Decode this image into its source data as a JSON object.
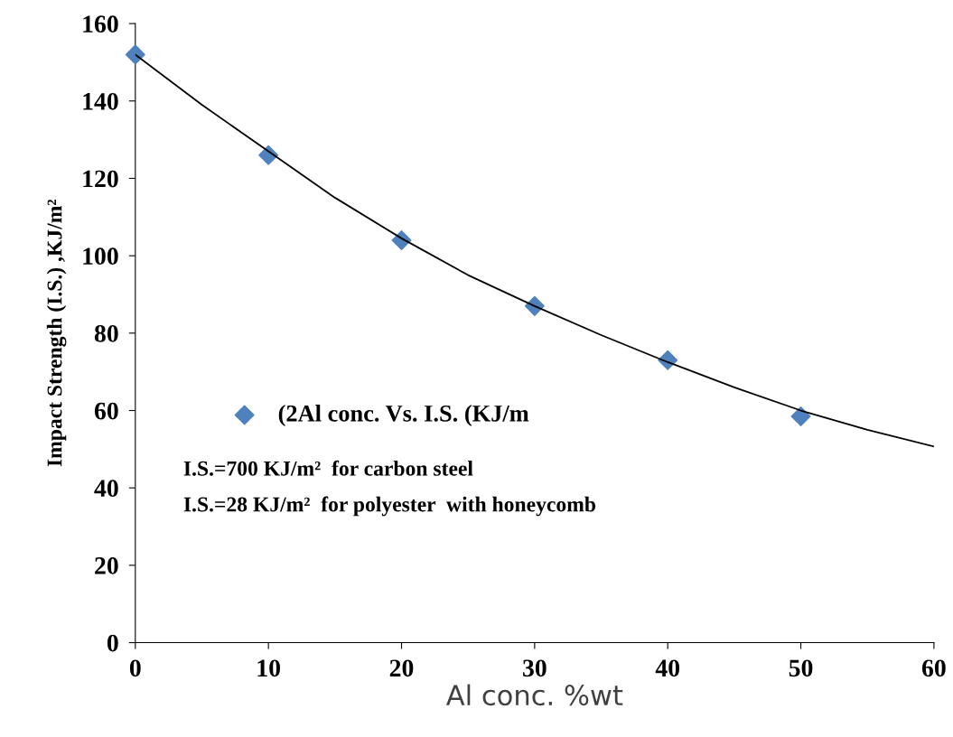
{
  "chart_data": {
    "type": "scatter",
    "xlabel": "Al conc. %wt",
    "ylabel": "Impact Strength (I.S.) ,KJ/m²",
    "x": [
      0,
      10,
      20,
      30,
      40,
      50
    ],
    "series": [
      {
        "name": "(2Al conc. Vs. I.S. (KJ/m",
        "color": "#4f81bd",
        "values": [
          152,
          126,
          104,
          87,
          73,
          58.5
        ],
        "marker": "diamond"
      },
      {
        "type": "line",
        "color": "#000000",
        "x": [
          0,
          5,
          10,
          15,
          20,
          25,
          30,
          35,
          40,
          45,
          50,
          55,
          60
        ],
        "values": [
          152,
          139,
          127,
          115,
          104.5,
          95,
          87,
          79.5,
          72.5,
          66,
          60,
          55,
          50.7
        ],
        "marker": "none",
        "line_style": "solid"
      }
    ],
    "annotations": [
      "I.S.=700 KJ/m²  for carbon steel",
      "I.S.=28 KJ/m²  for polyester  with honeycomb"
    ],
    "xlim": [
      0,
      60
    ],
    "xticks": [
      0,
      10,
      20,
      30,
      40,
      50,
      60
    ],
    "ylim": [
      0,
      160
    ],
    "yticks": [
      0,
      20,
      40,
      60,
      80,
      100,
      120,
      140,
      160
    ],
    "grid": false,
    "legend": "center left"
  }
}
